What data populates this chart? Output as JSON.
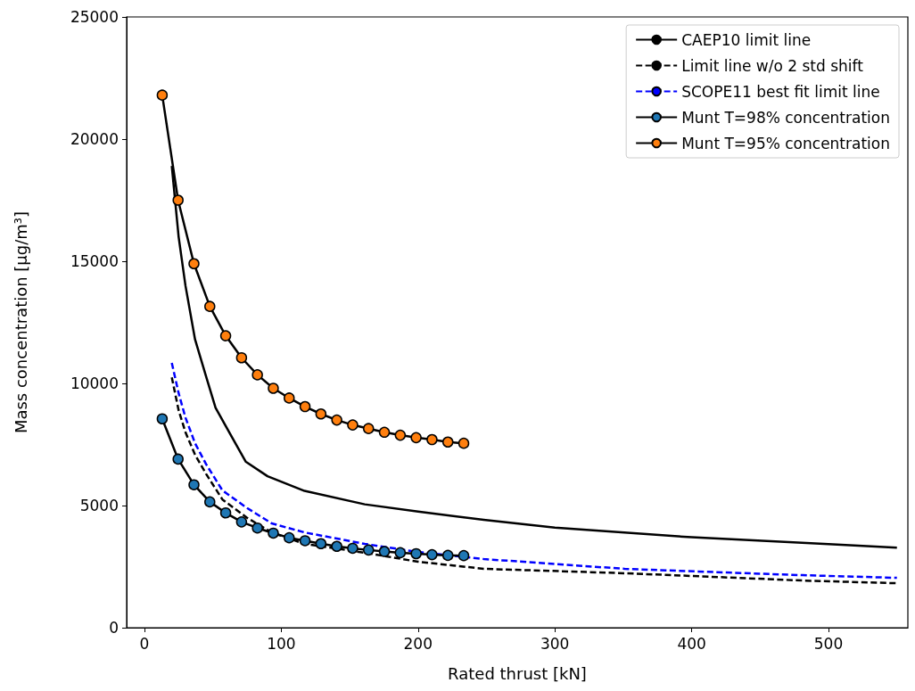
{
  "chart_data": {
    "type": "line",
    "xlabel": "Rated thrust [kN]",
    "ylabel": "Mass concentration [μg/m³]",
    "xlim": [
      -13,
      558
    ],
    "xticks": [
      0,
      100,
      200,
      300,
      400,
      500
    ],
    "ylim": [
      0,
      25000
    ],
    "yticks": [
      0,
      5000,
      10000,
      15000,
      20000,
      25000
    ],
    "grid": false,
    "legend": "top right",
    "series": [
      {
        "name": "CAEP10 limit line",
        "color": "#000000",
        "line_style": "solid",
        "marker": "none",
        "x": [
          20,
          25,
          30,
          37,
          45,
          52,
          60,
          74,
          90,
          117,
          161,
          200,
          248,
          300,
          400,
          500,
          550
        ],
        "values": [
          18900,
          16000,
          14000,
          11800,
          10300,
          9000,
          8200,
          6800,
          6200,
          5600,
          5050,
          4750,
          4420,
          4100,
          3700,
          3420,
          3280
        ]
      },
      {
        "name": "Limit line w/o 2 std shift",
        "color": "#000000",
        "line_style": "dashed",
        "marker": "none",
        "x": [
          20,
          25,
          30,
          37,
          45,
          57,
          75,
          93,
          117,
          161,
          200,
          248,
          351,
          481,
          550
        ],
        "values": [
          10250,
          8900,
          8000,
          7080,
          6300,
          5250,
          4500,
          3900,
          3430,
          3070,
          2700,
          2410,
          2230,
          1930,
          1820
        ]
      },
      {
        "name": "SCOPE11 best fit limit line",
        "color": "#0000ff",
        "line_style": "dashed",
        "marker": "none",
        "x": [
          20,
          25,
          30,
          37,
          45,
          57,
          75,
          93,
          117,
          161,
          200,
          248,
          351,
          481,
          550
        ],
        "values": [
          10840,
          9600,
          8600,
          7550,
          6700,
          5620,
          4900,
          4270,
          3900,
          3430,
          3100,
          2810,
          2410,
          2150,
          2040
        ]
      },
      {
        "name": "Munt T=98% concentration",
        "color": "#1f77b4",
        "line_style": "solid",
        "marker": "circle",
        "x": [
          13,
          24.6,
          36.2,
          47.8,
          59.4,
          71,
          82.6,
          94.2,
          105.8,
          117.4,
          129,
          140.6,
          152.2,
          163.8,
          175.4,
          187,
          198.6,
          210.2,
          221.8,
          233.4
        ],
        "values": [
          8550,
          6900,
          5850,
          5150,
          4700,
          4330,
          4080,
          3870,
          3680,
          3560,
          3440,
          3330,
          3250,
          3180,
          3120,
          3070,
          3030,
          2990,
          2960,
          2950
        ]
      },
      {
        "name": "Munt T=95% concentration",
        "color": "#ff7f0e",
        "line_style": "solid",
        "marker": "circle",
        "x": [
          13,
          24.6,
          36.2,
          47.8,
          59.4,
          71,
          82.6,
          94.2,
          105.8,
          117.4,
          129,
          140.6,
          152.2,
          163.8,
          175.4,
          187,
          198.6,
          210.2,
          221.8,
          233.4
        ],
        "values": [
          21800,
          17500,
          14900,
          13150,
          11950,
          11050,
          10350,
          9800,
          9400,
          9050,
          8750,
          8500,
          8300,
          8150,
          8000,
          7880,
          7780,
          7700,
          7600,
          7550
        ]
      }
    ]
  }
}
